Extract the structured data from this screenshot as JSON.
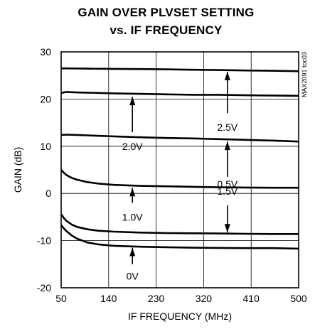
{
  "chart_data": {
    "type": "line",
    "title": "GAIN OVER PLVSET SETTING",
    "subtitle": "vs. IF FREQUENCY",
    "xlabel": "IF FREQUENCY (MHz)",
    "ylabel": "GAIN (dB)",
    "xlim": [
      50,
      500
    ],
    "ylim": [
      -20,
      30
    ],
    "xticks": [
      50,
      140,
      230,
      320,
      410,
      500
    ],
    "yticks": [
      30,
      20,
      10,
      0,
      -10,
      -20
    ],
    "grid": true,
    "side_label": "MAX2091 toc03",
    "series": [
      {
        "name": "2.5V",
        "x": [
          50,
          100,
          150,
          200,
          250,
          300,
          350,
          400,
          450,
          500
        ],
        "y": [
          26.5,
          26.45,
          26.4,
          26.35,
          26.3,
          26.2,
          26.15,
          26.05,
          26.0,
          25.9
        ]
      },
      {
        "name": "2.0V",
        "x": [
          50,
          60,
          80,
          100,
          150,
          200,
          250,
          300,
          350,
          400,
          450,
          500
        ],
        "y": [
          21.3,
          21.5,
          21.4,
          21.35,
          21.2,
          21.1,
          21.0,
          20.9,
          20.9,
          20.8,
          20.75,
          20.7
        ]
      },
      {
        "name": "1.5V",
        "x": [
          50,
          60,
          80,
          100,
          150,
          200,
          250,
          300,
          350,
          400,
          450,
          500
        ],
        "y": [
          12.4,
          12.45,
          12.4,
          12.3,
          12.1,
          11.9,
          11.75,
          11.65,
          11.5,
          11.35,
          11.2,
          11.0
        ]
      },
      {
        "name": "1.0V",
        "x": [
          50,
          55,
          60,
          70,
          80,
          100,
          120,
          150,
          200,
          250,
          300,
          350,
          400,
          450,
          500
        ],
        "y": [
          5.0,
          4.4,
          3.9,
          3.3,
          2.9,
          2.4,
          2.1,
          1.8,
          1.6,
          1.5,
          1.4,
          1.3,
          1.25,
          1.2,
          1.2
        ]
      },
      {
        "name": "0.5V",
        "x": [
          50,
          55,
          60,
          70,
          80,
          100,
          120,
          150,
          200,
          250,
          300,
          350,
          400,
          450,
          500
        ],
        "y": [
          -4.4,
          -5.2,
          -5.8,
          -6.6,
          -7.1,
          -7.6,
          -7.9,
          -8.1,
          -8.3,
          -8.4,
          -8.45,
          -8.5,
          -8.55,
          -8.6,
          -8.6
        ]
      },
      {
        "name": "0V",
        "x": [
          50,
          55,
          60,
          70,
          80,
          100,
          120,
          150,
          200,
          250,
          300,
          350,
          400,
          450,
          500
        ],
        "y": [
          -6.7,
          -7.4,
          -8.0,
          -8.9,
          -9.6,
          -10.4,
          -10.8,
          -11.1,
          -11.3,
          -11.4,
          -11.5,
          -11.55,
          -11.6,
          -11.6,
          -11.7
        ]
      }
    ],
    "annotations": [
      {
        "text": "2.5V",
        "arrow_direction": "up",
        "arrow_x": 365,
        "arrow_from": 17,
        "arrow_to": 25.8,
        "label_y": 14
      },
      {
        "text": "2.0V",
        "arrow_direction": "up",
        "arrow_x": 185,
        "arrow_from": 13,
        "arrow_to": 20.5,
        "label_y": 10
      },
      {
        "text": "1.5V",
        "arrow_direction": "up",
        "arrow_x": 365,
        "arrow_from": 3.5,
        "arrow_to": 11.0,
        "label_y": 0.5
      },
      {
        "text": "1.0V",
        "arrow_direction": "up",
        "arrow_x": 185,
        "arrow_from": -2,
        "arrow_to": 1.2,
        "label_y": -5
      },
      {
        "text": "0.5V",
        "arrow_direction": "down",
        "arrow_x": 365,
        "arrow_from": -2.5,
        "arrow_to": -8.3,
        "label_y": 2
      },
      {
        "text": "0V",
        "arrow_direction": "up",
        "arrow_x": 185,
        "arrow_from": -15,
        "arrow_to": -11.5,
        "label_y": -17.5
      }
    ]
  }
}
